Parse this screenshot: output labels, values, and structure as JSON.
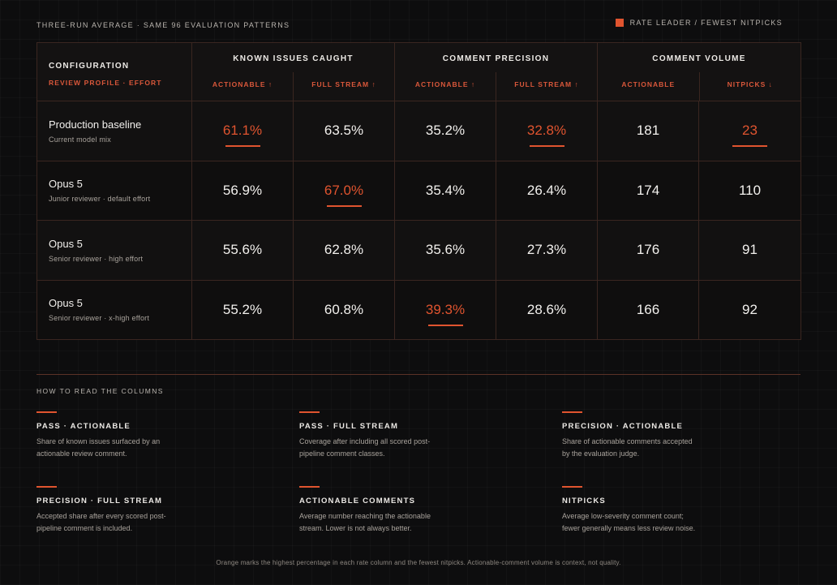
{
  "header": {
    "subtitle": "THREE-RUN AVERAGE · SAME 96 EVALUATION PATTERNS",
    "legend_label": "RATE LEADER / FEWEST NITPICKS",
    "accent_color": "#e0542f"
  },
  "table": {
    "config_title": "CONFIGURATION",
    "config_sub": "REVIEW PROFILE · EFFORT",
    "groups": [
      {
        "title": "KNOWN ISSUES CAUGHT",
        "subs": [
          "ACTIONABLE ↑",
          "FULL STREAM ↑"
        ]
      },
      {
        "title": "COMMENT PRECISION",
        "subs": [
          "ACTIONABLE ↑",
          "FULL STREAM ↑"
        ]
      },
      {
        "title": "COMMENT VOLUME",
        "subs": [
          "ACTIONABLE",
          "NITPICKS ↓"
        ]
      }
    ],
    "rows": [
      {
        "name": "Production baseline",
        "desc": "Current model mix",
        "values": [
          "61.1%",
          "63.5%",
          "35.2%",
          "32.8%",
          "181",
          "23"
        ],
        "leaders": [
          true,
          false,
          false,
          true,
          false,
          true
        ]
      },
      {
        "name": "Opus 5",
        "desc": "Junior reviewer · default effort",
        "values": [
          "56.9%",
          "67.0%",
          "35.4%",
          "26.4%",
          "174",
          "110"
        ],
        "leaders": [
          false,
          true,
          false,
          false,
          false,
          false
        ]
      },
      {
        "name": "Opus 5",
        "desc": "Senior reviewer · high effort",
        "values": [
          "55.6%",
          "62.8%",
          "35.6%",
          "27.3%",
          "176",
          "91"
        ],
        "leaders": [
          false,
          false,
          false,
          false,
          false,
          false
        ]
      },
      {
        "name": "Opus 5",
        "desc": "Senior reviewer · x-high effort",
        "values": [
          "55.2%",
          "60.8%",
          "39.3%",
          "28.6%",
          "166",
          "92"
        ],
        "leaders": [
          false,
          false,
          true,
          false,
          false,
          false
        ]
      }
    ]
  },
  "guide": {
    "title": "HOW TO READ THE COLUMNS",
    "notes": [
      {
        "title": "PASS · ACTIONABLE",
        "body": "Share of known issues surfaced by an actionable review comment."
      },
      {
        "title": "PASS · FULL STREAM",
        "body": "Coverage after including all scored post-pipeline comment classes."
      },
      {
        "title": "PRECISION · ACTIONABLE",
        "body": "Share of actionable comments accepted by the evaluation judge."
      },
      {
        "title": "PRECISION · FULL STREAM",
        "body": "Accepted share after every scored post-pipeline comment is included."
      },
      {
        "title": "ACTIONABLE COMMENTS",
        "body": "Average number reaching the actionable stream. Lower is not always better."
      },
      {
        "title": "NITPICKS",
        "body": "Average low-severity comment count; fewer generally means less review noise."
      }
    ]
  },
  "footnote": "Orange marks the highest percentage in each rate column and the fewest nitpicks. Actionable-comment volume is context, not quality."
}
